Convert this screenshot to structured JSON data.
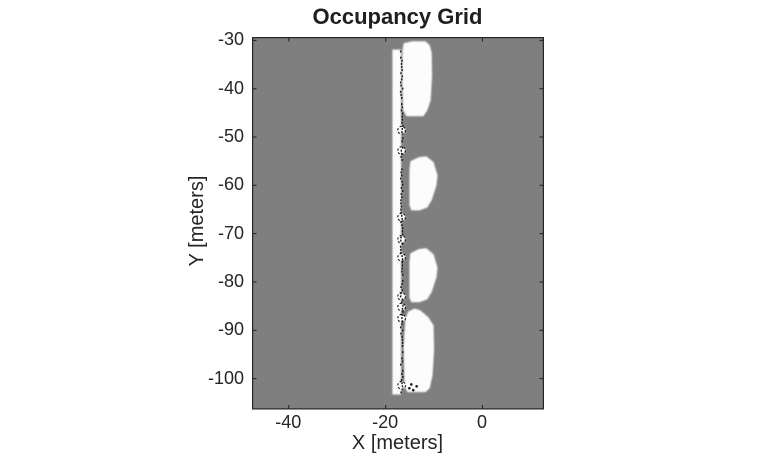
{
  "figure": {
    "background": "#ffffff"
  },
  "chart_data": {
    "type": "heatmap",
    "title": "Occupancy Grid",
    "xlabel": "X [meters]",
    "ylabel": "Y [meters]",
    "xlim": [
      -47.6,
      12.7
    ],
    "ylim": [
      -106.4,
      -29.3
    ],
    "xticks": [
      -40,
      -20,
      0
    ],
    "yticks": [
      -30,
      -40,
      -50,
      -60,
      -70,
      -80,
      -90,
      -100
    ],
    "grid": false,
    "legend": false,
    "box": true,
    "tick_direction": "in",
    "colors": {
      "unknown_cell": "#7f7f7f",
      "free_cell": "#fcfcfc",
      "occupied_cell": "#141414",
      "axis": "#262626",
      "text": "#262626",
      "title_text": "#1f1f1f"
    },
    "occupancy": {
      "unknown_background": true,
      "free_strip": {
        "x_range": [
          -18.6,
          -16.8
        ],
        "y_range": [
          -103.3,
          -31.9
        ]
      },
      "free_regions": [
        {
          "name": "blob-1",
          "points": [
            [
              -16.3,
              -30.6
            ],
            [
              -14.5,
              -30.2
            ],
            [
              -11.8,
              -30.2
            ],
            [
              -10.9,
              -31.0
            ],
            [
              -10.5,
              -32.5
            ],
            [
              -10.4,
              -37.2
            ],
            [
              -10.7,
              -42.4
            ],
            [
              -11.4,
              -44.5
            ],
            [
              -12.2,
              -45.7
            ],
            [
              -15.7,
              -45.7
            ],
            [
              -16.4,
              -44.5
            ],
            [
              -16.6,
              -37.2
            ],
            [
              -16.5,
              -32.1
            ]
          ]
        },
        {
          "name": "blob-2",
          "points": [
            [
              -14.9,
              -55.0
            ],
            [
              -13.2,
              -54.2
            ],
            [
              -11.6,
              -54.0
            ],
            [
              -10.1,
              -55.2
            ],
            [
              -9.3,
              -57.9
            ],
            [
              -9.5,
              -60.0
            ],
            [
              -10.5,
              -63.1
            ],
            [
              -11.4,
              -64.6
            ],
            [
              -13.0,
              -65.2
            ],
            [
              -14.7,
              -65.2
            ],
            [
              -15.1,
              -64.1
            ],
            [
              -15.1,
              -56.9
            ]
          ]
        },
        {
          "name": "blob-3",
          "points": [
            [
              -14.9,
              -74.1
            ],
            [
              -13.2,
              -73.2
            ],
            [
              -11.6,
              -73.0
            ],
            [
              -10.1,
              -74.3
            ],
            [
              -9.3,
              -77.0
            ],
            [
              -9.5,
              -79.0
            ],
            [
              -10.5,
              -82.1
            ],
            [
              -11.4,
              -83.6
            ],
            [
              -13.0,
              -84.2
            ],
            [
              -14.7,
              -84.2
            ],
            [
              -15.1,
              -83.2
            ],
            [
              -15.1,
              -75.9
            ]
          ]
        },
        {
          "name": "blob-4",
          "points": [
            [
              -15.3,
              -86.1
            ],
            [
              -14.0,
              -85.5
            ],
            [
              -12.8,
              -85.9
            ],
            [
              -11.2,
              -87.3
            ],
            [
              -10.1,
              -89.0
            ],
            [
              -10.0,
              -94.1
            ],
            [
              -10.3,
              -99.3
            ],
            [
              -10.9,
              -102.0
            ],
            [
              -11.8,
              -102.8
            ],
            [
              -15.5,
              -102.8
            ],
            [
              -16.1,
              -101.6
            ],
            [
              -16.3,
              -93.1
            ],
            [
              -15.9,
              -87.5
            ]
          ]
        }
      ],
      "occupied_boundary": {
        "x": -16.75,
        "y_range": [
          -102.7,
          -32.1
        ],
        "style": "dotted-jagged"
      },
      "scallops": {
        "x": -16.7,
        "radius": 0.8,
        "y_positions": [
          -48.6,
          -52.8,
          -66.6,
          -71.2,
          -74.9,
          -83.0,
          -85.2,
          -87.5,
          -101.4
        ]
      },
      "extra_marks": [
        [
          -15.1,
          -102.0
        ],
        [
          -14.3,
          -102.4
        ],
        [
          -13.6,
          -101.6
        ],
        [
          -14.7,
          -101.2
        ]
      ]
    }
  }
}
